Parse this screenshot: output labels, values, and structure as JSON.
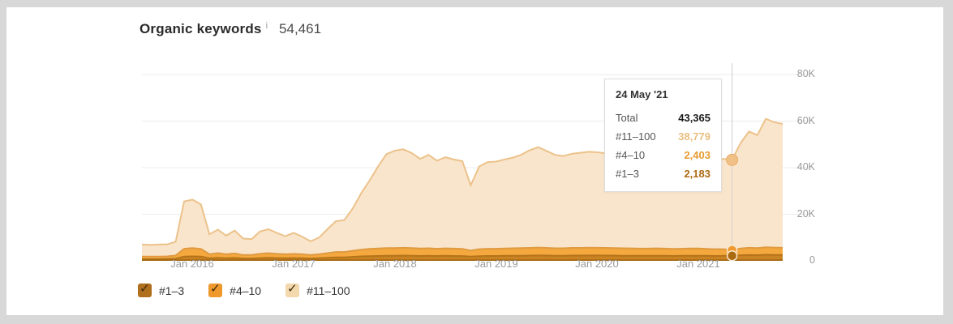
{
  "header": {
    "title": "Organic keywords",
    "info_icon": "i",
    "value": "54,461"
  },
  "chart_data": {
    "type": "area",
    "stacked": true,
    "title": "Organic keywords",
    "grid": true,
    "y_axis": {
      "position": "right",
      "min": 0,
      "max": 80000,
      "grid_step": 20000
    },
    "y_tick_labels": [
      "80K",
      "60K",
      "40K",
      "20K",
      "0"
    ],
    "y_tick_values": [
      80000,
      60000,
      40000,
      20000,
      0
    ],
    "x_tick_labels": [
      "Jan 2016",
      "Jan 2017",
      "Jan 2018",
      "Jan 2019",
      "Jan 2020",
      "Jan 2021"
    ],
    "x_tick_indices": [
      6,
      18,
      30,
      42,
      54,
      66
    ],
    "months": [
      "2015-07",
      "2015-08",
      "2015-09",
      "2015-10",
      "2015-11",
      "2015-12",
      "2016-01",
      "2016-02",
      "2016-03",
      "2016-04",
      "2016-05",
      "2016-06",
      "2016-07",
      "2016-08",
      "2016-09",
      "2016-10",
      "2016-11",
      "2016-12",
      "2017-01",
      "2017-02",
      "2017-03",
      "2017-04",
      "2017-05",
      "2017-06",
      "2017-07",
      "2017-08",
      "2017-09",
      "2017-10",
      "2017-11",
      "2017-12",
      "2018-01",
      "2018-02",
      "2018-03",
      "2018-04",
      "2018-05",
      "2018-06",
      "2018-07",
      "2018-08",
      "2018-09",
      "2018-10",
      "2018-11",
      "2018-12",
      "2019-01",
      "2019-02",
      "2019-03",
      "2019-04",
      "2019-05",
      "2019-06",
      "2019-07",
      "2019-08",
      "2019-09",
      "2019-10",
      "2019-11",
      "2019-12",
      "2020-01",
      "2020-02",
      "2020-03",
      "2020-04",
      "2020-05",
      "2020-06",
      "2020-07",
      "2020-08",
      "2020-09",
      "2020-10",
      "2020-11",
      "2020-12",
      "2021-01",
      "2021-02",
      "2021-03",
      "2021-04",
      "2021-05",
      "2021-06",
      "2021-07",
      "2021-08",
      "2021-09",
      "2021-10",
      "2021-11"
    ],
    "series": [
      {
        "name": "#1–3",
        "fill": "#c98322",
        "line": "#b5731a",
        "base_line": "#a2650e",
        "marker": "#aa6a10",
        "values": [
          700,
          700,
          700,
          750,
          900,
          1800,
          1900,
          1800,
          1100,
          1300,
          1100,
          1250,
          1000,
          1000,
          1200,
          1300,
          1200,
          1100,
          1200,
          1100,
          1000,
          1100,
          1300,
          1500,
          1500,
          1700,
          1900,
          2000,
          2100,
          2200,
          2200,
          2250,
          2200,
          2100,
          2150,
          2100,
          2150,
          2100,
          2050,
          1800,
          2000,
          2100,
          2100,
          2150,
          2200,
          2200,
          2250,
          2300,
          2250,
          2200,
          2200,
          2250,
          2250,
          2300,
          2300,
          2250,
          2250,
          2200,
          2200,
          2150,
          2150,
          2200,
          2150,
          2100,
          2150,
          2200,
          2200,
          2150,
          2100,
          2150,
          2183,
          2400,
          2500,
          2450,
          2600,
          2550,
          2500
        ]
      },
      {
        "name": "#4–10",
        "fill": "#f4a83e",
        "line": "#df9a42",
        "marker": "#ef9a2f",
        "values": [
          1100,
          1100,
          1100,
          1150,
          1400,
          3400,
          3600,
          3300,
          1700,
          2000,
          1700,
          1900,
          1500,
          1500,
          1800,
          2000,
          1800,
          1700,
          1800,
          1700,
          1500,
          1700,
          2000,
          2300,
          2300,
          2600,
          2900,
          3100,
          3200,
          3300,
          3300,
          3350,
          3300,
          3200,
          3250,
          3100,
          3200,
          3150,
          3100,
          2600,
          3000,
          3100,
          3100,
          3150,
          3200,
          3250,
          3300,
          3400,
          3300,
          3200,
          3200,
          3300,
          3300,
          3350,
          3300,
          3300,
          3250,
          3200,
          3150,
          3100,
          3100,
          3150,
          3100,
          3000,
          3050,
          3100,
          3100,
          3000,
          2900,
          2850,
          2403,
          2900,
          3100,
          3000,
          3200,
          3150,
          3100
        ]
      },
      {
        "name": "#11–100",
        "fill": "#f9e5cb",
        "line": "#ecc28b",
        "marker": "#f1c086",
        "values": [
          5200,
          5100,
          5200,
          5200,
          5900,
          20300,
          20800,
          19100,
          8600,
          10100,
          8000,
          9850,
          7100,
          6800,
          9600,
          10300,
          9000,
          7800,
          9000,
          7600,
          5900,
          7200,
          10300,
          13200,
          13700,
          18200,
          24200,
          29400,
          35200,
          40300,
          41800,
          42300,
          40800,
          38500,
          40100,
          37800,
          39150,
          38250,
          37650,
          28100,
          35500,
          37200,
          37400,
          38200,
          38900,
          40150,
          41950,
          43100,
          41650,
          40100,
          39600,
          40450,
          40850,
          41150,
          41000,
          40650,
          40200,
          39800,
          39450,
          39050,
          38650,
          39050,
          38750,
          38500,
          39000,
          39500,
          39900,
          38850,
          38200,
          38800,
          38779,
          45200,
          49900,
          48550,
          55200,
          53800,
          53200
        ]
      }
    ],
    "cursor": {
      "index": 70,
      "date": "24 May '21",
      "line_color": "#cfcfcf"
    },
    "grid_color": "#ececec"
  },
  "tooltip": {
    "date": "24 May '21",
    "rows": [
      {
        "label": "Total",
        "value": "43,365",
        "color": "#1a1a1a"
      },
      {
        "label": "#11–100",
        "value": "38,779",
        "color": "#e8bf80"
      },
      {
        "label": "#4–10",
        "value": "2,403",
        "color": "#e79b31"
      },
      {
        "label": "#1–3",
        "value": "2,183",
        "color": "#ad6b13"
      }
    ]
  },
  "legend": {
    "check_glyph": "✓",
    "items": [
      {
        "label": "#1–3",
        "checkbox_color": "#b06f1d",
        "checked": true
      },
      {
        "label": "#4–10",
        "checkbox_color": "#ef982b",
        "checked": true
      },
      {
        "label": "#11–100",
        "checkbox_color": "#f3d8ad",
        "checked": true
      }
    ]
  }
}
